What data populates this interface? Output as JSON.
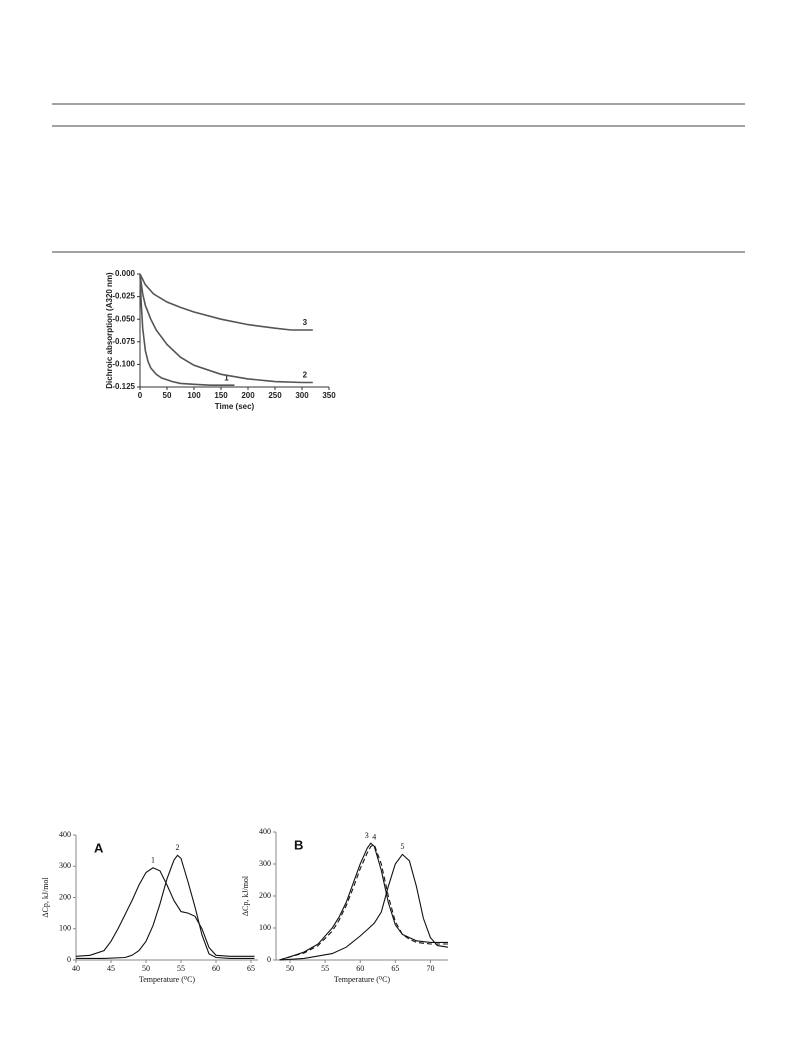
{
  "chart_data": [
    {
      "type": "line",
      "ylabel": "Dichroic absorption (A320 nm)",
      "xlabel": "Time (sec)",
      "xlim": [
        0,
        350
      ],
      "xticks": [
        0,
        50,
        100,
        150,
        200,
        250,
        300,
        350
      ],
      "ylim": [
        -0.125,
        0
      ],
      "yticks": [
        {
          "value": 0,
          "label": "0.000"
        },
        -0.025,
        {
          "value": -0.05,
          "label": "-0.050"
        },
        -0.075,
        {
          "value": -0.1,
          "label": "-0.100"
        },
        -0.125
      ],
      "series": [
        {
          "name": "1",
          "color": "#555555",
          "x": [
            0,
            2,
            5,
            10,
            15,
            20,
            30,
            40,
            50,
            60,
            75,
            100,
            130,
            175
          ],
          "values": [
            0,
            -0.03,
            -0.06,
            -0.085,
            -0.097,
            -0.104,
            -0.111,
            -0.115,
            -0.117,
            -0.119,
            -0.121,
            -0.122,
            -0.123,
            -0.123
          ]
        },
        {
          "name": "2",
          "color": "#555555",
          "x": [
            0,
            5,
            10,
            20,
            30,
            50,
            75,
            100,
            150,
            200,
            250,
            300,
            320
          ],
          "values": [
            0,
            -0.022,
            -0.035,
            -0.05,
            -0.062,
            -0.078,
            -0.092,
            -0.101,
            -0.111,
            -0.116,
            -0.119,
            -0.12,
            -0.12
          ]
        },
        {
          "name": "3",
          "color": "#555555",
          "x": [
            0,
            10,
            25,
            50,
            75,
            100,
            150,
            200,
            250,
            280,
            300,
            320
          ],
          "values": [
            0,
            -0.012,
            -0.022,
            -0.031,
            -0.037,
            -0.042,
            -0.05,
            -0.056,
            -0.06,
            -0.062,
            -0.062,
            -0.062
          ]
        }
      ]
    },
    {
      "type": "line",
      "panel": "A",
      "ylabel": "ΔCp, kJ/mol",
      "xlabel": "Temperature (⁰C)",
      "xlim": [
        40,
        66
      ],
      "xticks": [
        40,
        45,
        50,
        55,
        60,
        65
      ],
      "ylim": [
        0,
        400
      ],
      "yticks": [
        0,
        100,
        200,
        300,
        400
      ],
      "series": [
        {
          "name": "1",
          "color": "#111111",
          "x": [
            40,
            42,
            44,
            45,
            46,
            47,
            48,
            49,
            50,
            51,
            52,
            53,
            54,
            55,
            56,
            57,
            58,
            59,
            60,
            62,
            65.5
          ],
          "values": [
            12,
            15,
            30,
            60,
            100,
            145,
            190,
            240,
            280,
            295,
            285,
            240,
            190,
            155,
            150,
            140,
            100,
            40,
            15,
            12,
            12
          ]
        },
        {
          "name": "2",
          "color": "#111111",
          "x": [
            40,
            44,
            47,
            48,
            49,
            50,
            51,
            52,
            53,
            54,
            54.5,
            55,
            56,
            57,
            58,
            59,
            60,
            62,
            65.5
          ],
          "values": [
            5,
            5,
            8,
            15,
            30,
            60,
            110,
            180,
            260,
            320,
            335,
            325,
            250,
            170,
            80,
            20,
            8,
            5,
            5
          ]
        }
      ]
    },
    {
      "type": "line",
      "panel": "B",
      "ylabel": "ΔCp, kJ/mol",
      "xlabel": "Temperature (⁰C)",
      "xlim": [
        48,
        72.5
      ],
      "xticks": [
        50,
        55,
        60,
        65,
        70
      ],
      "ylim": [
        0,
        400
      ],
      "yticks": [
        0,
        100,
        200,
        300,
        400
      ],
      "series": [
        {
          "name": "3",
          "color": "#111111",
          "dashed": false,
          "x": [
            48.5,
            50,
            52,
            54,
            56,
            57,
            58,
            59,
            60,
            61,
            61.5,
            62,
            63,
            64,
            65,
            66,
            67,
            68,
            70,
            72.5
          ],
          "values": [
            0,
            10,
            25,
            50,
            100,
            135,
            180,
            240,
            300,
            350,
            365,
            355,
            280,
            180,
            110,
            80,
            70,
            60,
            55,
            55
          ]
        },
        {
          "name": "4",
          "color": "#111111",
          "dashed": true,
          "x": [
            48.5,
            50,
            52,
            54,
            56,
            57,
            58,
            59,
            60,
            61,
            61.5,
            62,
            63,
            64,
            65,
            66,
            67,
            68,
            70,
            72.5
          ],
          "values": [
            0,
            10,
            22,
            45,
            90,
            125,
            170,
            225,
            285,
            335,
            355,
            360,
            300,
            200,
            120,
            80,
            65,
            55,
            50,
            50
          ]
        },
        {
          "name": "5",
          "color": "#111111",
          "dashed": false,
          "x": [
            48.5,
            52,
            56,
            58,
            60,
            61,
            62,
            63,
            64,
            65,
            66,
            67,
            68,
            69,
            70,
            71,
            72.5
          ],
          "values": [
            0,
            5,
            20,
            40,
            75,
            95,
            115,
            150,
            230,
            300,
            330,
            310,
            230,
            130,
            70,
            45,
            40
          ]
        }
      ]
    }
  ]
}
